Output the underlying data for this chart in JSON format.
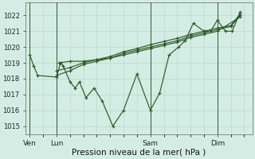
{
  "xlabel": "Pression niveau de la mer( hPa )",
  "bg_color": "#d4ede4",
  "line_color": "#2d5a27",
  "grid_color": "#b8d9cc",
  "ylim": [
    1014.5,
    1022.8
  ],
  "yticks": [
    1015,
    1016,
    1017,
    1018,
    1019,
    1020,
    1021,
    1022
  ],
  "xlim": [
    -0.15,
    8.3
  ],
  "vlines": [
    0.0,
    1.0,
    4.5,
    7.0
  ],
  "vline_labels": [
    "Ven",
    "Lun",
    "Sam",
    "Dim"
  ],
  "series": [
    {
      "x": [
        0.0,
        0.15,
        0.3,
        1.0,
        1.15,
        1.25,
        1.5,
        1.7,
        1.85,
        2.1,
        2.4,
        2.7,
        3.1,
        3.5,
        4.0,
        4.5,
        4.85,
        5.2,
        5.55,
        5.8,
        6.1,
        6.5,
        6.75,
        7.0,
        7.3,
        7.55,
        7.85
      ],
      "y": [
        1019.5,
        1018.8,
        1018.2,
        1018.1,
        1019.0,
        1018.8,
        1017.8,
        1017.4,
        1017.8,
        1016.8,
        1017.4,
        1016.6,
        1015.0,
        1016.0,
        1018.3,
        1016.0,
        1017.1,
        1019.5,
        1020.0,
        1020.4,
        1021.5,
        1021.0,
        1021.0,
        1021.7,
        1021.0,
        1021.0,
        1022.2
      ]
    },
    {
      "x": [
        1.0,
        1.5,
        2.0,
        2.5,
        3.0,
        3.5,
        4.0,
        4.5,
        5.0,
        5.5,
        6.0,
        6.5,
        7.0,
        7.5,
        7.85
      ],
      "y": [
        1018.2,
        1018.5,
        1018.9,
        1019.1,
        1019.3,
        1019.6,
        1019.8,
        1020.0,
        1020.2,
        1020.4,
        1020.7,
        1020.9,
        1021.1,
        1021.3,
        1022.0
      ]
    },
    {
      "x": [
        1.0,
        1.5,
        2.0,
        2.5,
        3.0,
        3.5,
        4.0,
        4.5,
        5.0,
        5.5,
        6.0,
        6.5,
        7.0,
        7.5,
        7.85
      ],
      "y": [
        1018.5,
        1018.7,
        1019.0,
        1019.2,
        1019.4,
        1019.7,
        1019.9,
        1020.15,
        1020.35,
        1020.55,
        1020.8,
        1021.0,
        1021.2,
        1021.35,
        1022.1
      ]
    },
    {
      "x": [
        1.1,
        1.5,
        2.0,
        2.5,
        3.0,
        3.5,
        4.0,
        4.5,
        5.0,
        5.5,
        6.0,
        6.5,
        7.0,
        7.85
      ],
      "y": [
        1019.0,
        1019.1,
        1019.1,
        1019.2,
        1019.3,
        1019.5,
        1019.7,
        1019.9,
        1020.1,
        1020.3,
        1020.6,
        1020.8,
        1021.0,
        1021.9
      ]
    }
  ]
}
